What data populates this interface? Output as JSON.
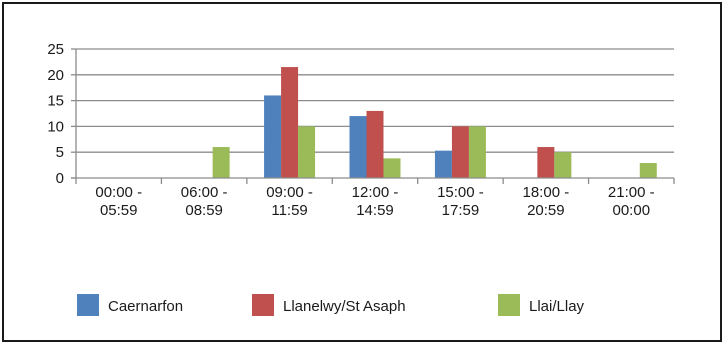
{
  "chart_data": {
    "type": "bar",
    "title": "",
    "xlabel": "",
    "ylabel": "",
    "ylim": [
      0,
      25
    ],
    "yticks": [
      0,
      5,
      10,
      15,
      20,
      25
    ],
    "grid": true,
    "legend_position": "bottom",
    "categories": [
      [
        "00:00 -",
        "05:59"
      ],
      [
        "06:00 -",
        "08:59"
      ],
      [
        "09:00 -",
        "11:59"
      ],
      [
        "12:00 -",
        "14:59"
      ],
      [
        "15:00 -",
        "17:59"
      ],
      [
        "18:00 -",
        "20:59"
      ],
      [
        "21:00 -",
        "00:00"
      ]
    ],
    "series": [
      {
        "name": "Caernarfon",
        "color": "#4f81bd",
        "values": [
          0,
          0,
          16,
          12,
          5.3,
          0,
          0
        ]
      },
      {
        "name": "Llanelwy/St Asaph",
        "color": "#c0504d",
        "values": [
          0,
          0,
          21.5,
          13,
          10,
          6,
          0
        ]
      },
      {
        "name": "Llai/Llay",
        "color": "#9bbb59",
        "values": [
          0,
          6,
          10,
          3.8,
          10,
          5,
          2.9
        ]
      }
    ]
  }
}
